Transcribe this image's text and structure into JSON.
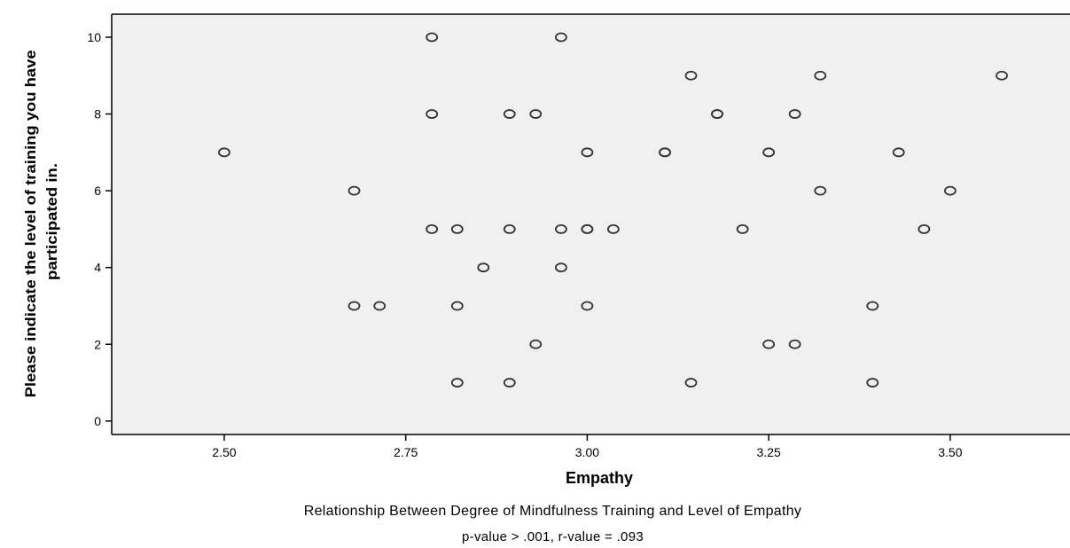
{
  "chart_data": {
    "type": "scatter",
    "xlabel": "Empathy",
    "ylabel_lines": [
      "Please indicate the level of training you have",
      "participated in."
    ],
    "xlim": [
      2.345,
      3.665
    ],
    "ylim": [
      -0.35,
      10.6
    ],
    "xticks": [
      2.5,
      2.75,
      3.0,
      3.25,
      3.5
    ],
    "xtick_labels": [
      "2.50",
      "2.75",
      "3.00",
      "3.25",
      "3.50"
    ],
    "yticks": [
      0,
      2,
      4,
      6,
      8,
      10
    ],
    "ytick_labels": [
      "0",
      "2",
      "4",
      "6",
      "8",
      "10"
    ],
    "grid": false,
    "plot_background": "#f0f0f0",
    "marker_color": "#333333",
    "points": [
      {
        "x": 2.786,
        "y": 10
      },
      {
        "x": 2.964,
        "y": 10
      },
      {
        "x": 3.143,
        "y": 9
      },
      {
        "x": 3.321,
        "y": 9
      },
      {
        "x": 3.571,
        "y": 9
      },
      {
        "x": 2.786,
        "y": 8
      },
      {
        "x": 2.893,
        "y": 8
      },
      {
        "x": 2.929,
        "y": 8
      },
      {
        "x": 3.179,
        "y": 8
      },
      {
        "x": 3.179,
        "y": 8
      },
      {
        "x": 3.286,
        "y": 8
      },
      {
        "x": 2.5,
        "y": 7
      },
      {
        "x": 3.0,
        "y": 7
      },
      {
        "x": 3.107,
        "y": 7
      },
      {
        "x": 3.107,
        "y": 7
      },
      {
        "x": 3.25,
        "y": 7
      },
      {
        "x": 3.429,
        "y": 7
      },
      {
        "x": 2.679,
        "y": 6
      },
      {
        "x": 3.321,
        "y": 6
      },
      {
        "x": 3.5,
        "y": 6
      },
      {
        "x": 2.786,
        "y": 5
      },
      {
        "x": 2.821,
        "y": 5
      },
      {
        "x": 2.893,
        "y": 5
      },
      {
        "x": 2.964,
        "y": 5
      },
      {
        "x": 3.0,
        "y": 5
      },
      {
        "x": 3.0,
        "y": 5
      },
      {
        "x": 3.036,
        "y": 5
      },
      {
        "x": 3.214,
        "y": 5
      },
      {
        "x": 3.464,
        "y": 5
      },
      {
        "x": 2.857,
        "y": 4
      },
      {
        "x": 2.964,
        "y": 4
      },
      {
        "x": 2.679,
        "y": 3
      },
      {
        "x": 2.714,
        "y": 3
      },
      {
        "x": 2.821,
        "y": 3
      },
      {
        "x": 3.0,
        "y": 3
      },
      {
        "x": 3.393,
        "y": 3
      },
      {
        "x": 2.929,
        "y": 2
      },
      {
        "x": 3.25,
        "y": 2
      },
      {
        "x": 3.286,
        "y": 2
      },
      {
        "x": 2.821,
        "y": 1
      },
      {
        "x": 2.893,
        "y": 1
      },
      {
        "x": 3.143,
        "y": 1
      },
      {
        "x": 3.393,
        "y": 1
      }
    ]
  },
  "caption": {
    "line1": "Relationship Between Degree of Mindfulness Training and Level of Empathy",
    "line2": "p-value > .001, r-value = .093"
  }
}
